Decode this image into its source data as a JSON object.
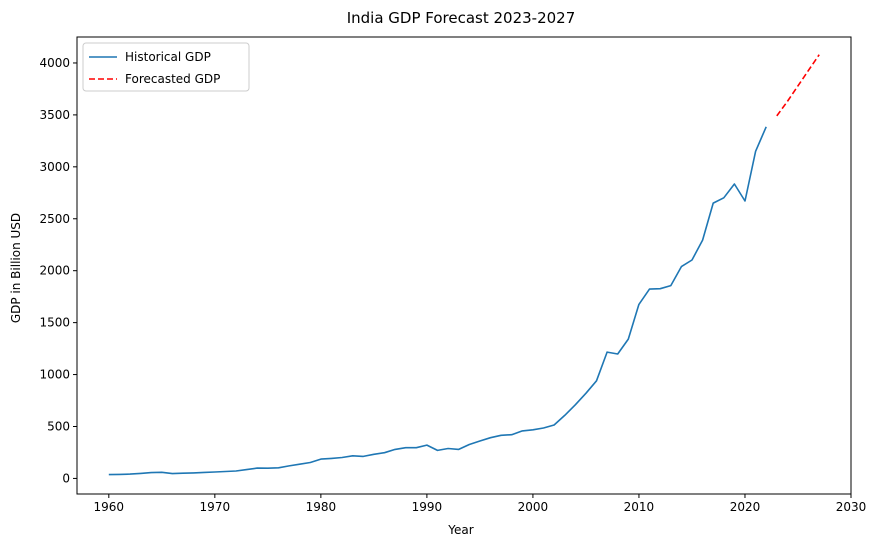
{
  "chart_data": {
    "type": "line",
    "title": "India GDP Forecast 2023-2027",
    "xlabel": "Year",
    "ylabel": "GDP in Billion USD",
    "xlim": [
      1957,
      2030
    ],
    "ylim": [
      -150,
      4250
    ],
    "xticks": [
      1960,
      1970,
      1980,
      1990,
      2000,
      2010,
      2020,
      2030
    ],
    "yticks": [
      0,
      500,
      1000,
      1500,
      2000,
      2500,
      3000,
      3500,
      4000
    ],
    "grid": false,
    "legend_position": "upper-left",
    "series": [
      {
        "name": "Historical GDP",
        "color": "#1f77b4",
        "style": "solid",
        "x": [
          1960,
          1961,
          1962,
          1963,
          1964,
          1965,
          1966,
          1967,
          1968,
          1969,
          1970,
          1971,
          1972,
          1973,
          1974,
          1975,
          1976,
          1977,
          1978,
          1979,
          1980,
          1981,
          1982,
          1983,
          1984,
          1985,
          1986,
          1987,
          1988,
          1989,
          1990,
          1991,
          1992,
          1993,
          1994,
          1995,
          1996,
          1997,
          1998,
          1999,
          2000,
          2001,
          2002,
          2003,
          2004,
          2005,
          2006,
          2007,
          2008,
          2009,
          2010,
          2011,
          2012,
          2013,
          2014,
          2015,
          2016,
          2017,
          2018,
          2019,
          2020,
          2021,
          2022
        ],
        "y": [
          37,
          39,
          42,
          48,
          56,
          59,
          46,
          50,
          53,
          58,
          62,
          67,
          71,
          85,
          99,
          98,
          102,
          121,
          137,
          153,
          186,
          193,
          201,
          218,
          212,
          232,
          248,
          279,
          296,
          296,
          321,
          270,
          288,
          279,
          327,
          360,
          392,
          415,
          421,
          458,
          468,
          485,
          514,
          607,
          709,
          820,
          940,
          1216,
          1198,
          1341,
          1675,
          1823,
          1827,
          1856,
          2039,
          2103,
          2295,
          2651,
          2702,
          2835,
          2671,
          3150,
          3385
        ]
      },
      {
        "name": "Forecasted GDP",
        "color": "#ff0000",
        "style": "dashed",
        "x": [
          2023,
          2024,
          2025,
          2026,
          2027
        ],
        "y": [
          3490,
          3630,
          3780,
          3930,
          4080
        ]
      }
    ]
  }
}
